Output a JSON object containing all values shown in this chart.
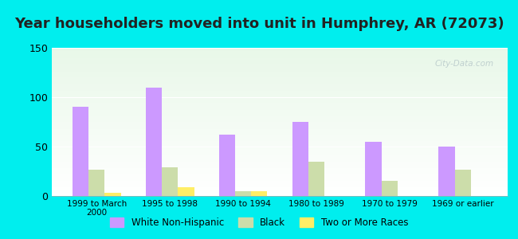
{
  "title": "Year householders moved into unit in Humphrey, AR (72073)",
  "categories": [
    "1999 to March\n2000",
    "1995 to 1998",
    "1990 to 1994",
    "1980 to 1989",
    "1970 to 1979",
    "1969 or earlier"
  ],
  "white_non_hispanic": [
    90,
    110,
    62,
    75,
    55,
    50
  ],
  "black": [
    27,
    29,
    5,
    35,
    15,
    27
  ],
  "two_or_more_races": [
    3,
    9,
    5,
    0,
    0,
    0
  ],
  "bar_colors": {
    "white_non_hispanic": "#cc99ff",
    "black": "#ccddaa",
    "two_or_more_races": "#ffee66"
  },
  "legend_labels": [
    "White Non-Hispanic",
    "Black",
    "Two or More Races"
  ],
  "ylim": [
    0,
    150
  ],
  "yticks": [
    0,
    50,
    100,
    150
  ],
  "background_color": "#00eeee",
  "title_fontsize": 13,
  "bar_width": 0.22,
  "watermark": "City-Data.com"
}
